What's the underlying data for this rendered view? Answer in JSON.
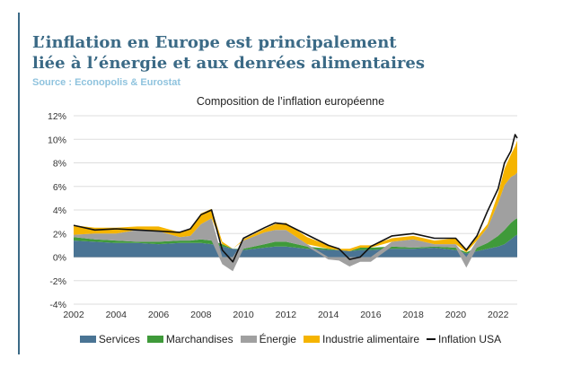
{
  "header": {
    "title_line1": "L’inflation en Europe est principalement",
    "title_line2": "liée à l’énergie et aux denrées alimentaires",
    "source": "Source : Econopolis & Eurostat"
  },
  "colors": {
    "title": "#3b6a86",
    "source": "#8fc3de",
    "accent_bar": "#3b6a86",
    "services": "#4a7494",
    "marchandises": "#3f9a3a",
    "energie": "#a0a0a0",
    "industrie_alimentaire": "#f5b400",
    "inflation_usa": "#111111",
    "grid": "#dddddd"
  },
  "chart_data": {
    "type": "area",
    "title": "Composition de l’inflation européenne",
    "xlabel": "",
    "ylabel": "",
    "x_ticks": [
      "2002",
      "2004",
      "2006",
      "2008",
      "2010",
      "2012",
      "2014",
      "2016",
      "2018",
      "2020",
      "2022"
    ],
    "y_ticks": [
      "12%",
      "10%",
      "8%",
      "6%",
      "4%",
      "2%",
      "0%",
      "-2%",
      "-4%"
    ],
    "xlim": [
      2002,
      2022.9
    ],
    "ylim": [
      -4,
      12
    ],
    "grid": true,
    "legend_position": "bottom",
    "x": [
      2002,
      2003,
      2004,
      2005,
      2006,
      2007,
      2007.5,
      2008,
      2008.5,
      2009,
      2009.5,
      2010,
      2011,
      2011.5,
      2012,
      2013,
      2014,
      2014.5,
      2015,
      2015.5,
      2016,
      2017,
      2018,
      2019,
      2020,
      2020.5,
      2021,
      2021.5,
      2022,
      2022.3,
      2022.6,
      2022.8,
      2022.9
    ],
    "series": [
      {
        "name": "Services",
        "values": [
          1.4,
          1.3,
          1.2,
          1.2,
          1.1,
          1.2,
          1.2,
          1.2,
          1.1,
          0.9,
          0.7,
          0.6,
          0.8,
          0.9,
          0.9,
          0.7,
          0.6,
          0.6,
          0.5,
          0.6,
          0.6,
          0.7,
          0.7,
          0.8,
          0.6,
          0.3,
          0.5,
          0.7,
          0.9,
          1.1,
          1.5,
          1.8,
          1.9
        ]
      },
      {
        "name": "Marchandises",
        "values": [
          0.3,
          0.2,
          0.2,
          0.1,
          0.2,
          0.2,
          0.2,
          0.3,
          0.3,
          0.2,
          0.0,
          0.1,
          0.3,
          0.4,
          0.4,
          0.2,
          0.1,
          0.0,
          0.0,
          0.2,
          0.2,
          0.2,
          0.1,
          0.1,
          0.2,
          0.1,
          0.3,
          0.5,
          0.9,
          1.2,
          1.4,
          1.4,
          1.4
        ]
      },
      {
        "name": "Énergie",
        "values": [
          0.2,
          0.5,
          0.6,
          1.0,
          0.9,
          0.3,
          0.4,
          1.3,
          1.9,
          -0.6,
          -1.2,
          0.7,
          1.0,
          1.0,
          1.0,
          0.2,
          -0.2,
          -0.3,
          -0.8,
          -0.4,
          -0.4,
          0.4,
          0.7,
          0.2,
          0.3,
          -0.9,
          0.6,
          1.3,
          2.8,
          3.8,
          3.9,
          3.8,
          3.9
        ]
      },
      {
        "name": "Industrie alimentaire",
        "values": [
          0.8,
          0.5,
          0.5,
          0.3,
          0.4,
          0.4,
          0.6,
          0.9,
          0.8,
          0.2,
          0.0,
          0.1,
          0.3,
          0.5,
          0.6,
          0.6,
          0.3,
          0.1,
          0.2,
          0.2,
          0.2,
          0.3,
          0.3,
          0.3,
          0.5,
          0.3,
          0.3,
          0.3,
          0.8,
          1.4,
          1.9,
          2.4,
          2.7
        ]
      },
      {
        "name": "Inflation USA",
        "type": "line",
        "values": [
          2.7,
          2.3,
          2.4,
          2.3,
          2.2,
          2.1,
          2.4,
          3.6,
          4.0,
          0.6,
          -0.4,
          1.6,
          2.5,
          2.9,
          2.8,
          1.9,
          1.0,
          0.7,
          -0.2,
          0.0,
          0.9,
          1.8,
          2.0,
          1.6,
          1.6,
          0.6,
          1.8,
          3.9,
          5.8,
          8.0,
          9.0,
          10.4,
          10.1
        ]
      }
    ]
  }
}
